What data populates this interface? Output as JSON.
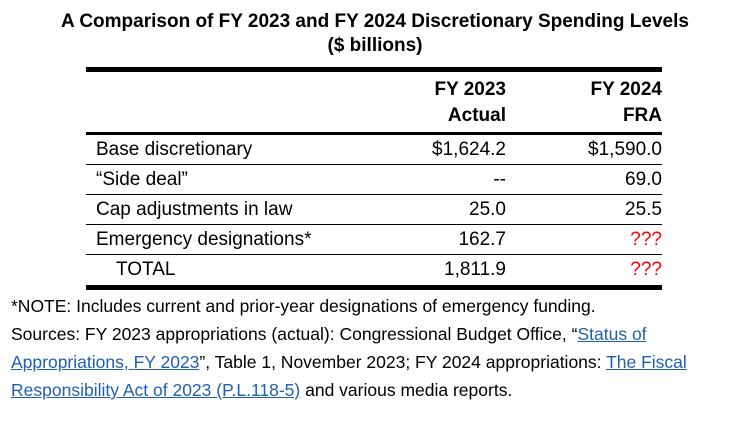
{
  "title": {
    "line1": "A Comparison of FY 2023 and FY 2024 Discretionary Spending Levels",
    "line2": "($ billions)"
  },
  "table": {
    "headers": {
      "col1_line1": "FY 2023",
      "col1_line2": "Actual",
      "col2_line1": "FY 2024",
      "col2_line2": "FRA"
    },
    "rows": [
      {
        "label": "Base discretionary",
        "fy2023": "$1,624.2",
        "fy2024": "$1,590.0"
      },
      {
        "label": "“Side deal”",
        "fy2023": "--",
        "fy2024": "69.0"
      },
      {
        "label": "Cap adjustments in law",
        "fy2023": "25.0",
        "fy2024": "25.5"
      },
      {
        "label": "Emergency designations*",
        "fy2023": "162.7",
        "fy2024": "???"
      },
      {
        "label": "TOTAL",
        "fy2023": "1,811.9",
        "fy2024": "???"
      }
    ],
    "unknown_color": "#ff0000"
  },
  "notes": {
    "note_line": "*NOTE: Includes current and prior-year designations of emergency funding.",
    "sources_part1": "Sources: FY 2023 appropriations (actual): Congressional Budget Office, “",
    "link1_text": "Status of Appropriations, FY 2023",
    "sources_part2": "”, Table 1, November 2023; FY 2024 appropriations: ",
    "link2_text": "The Fiscal Responsibility Act of 2023 (P.L.118-5)",
    "sources_part3": " and various media reports.",
    "link_color": "#1f5fb4"
  }
}
